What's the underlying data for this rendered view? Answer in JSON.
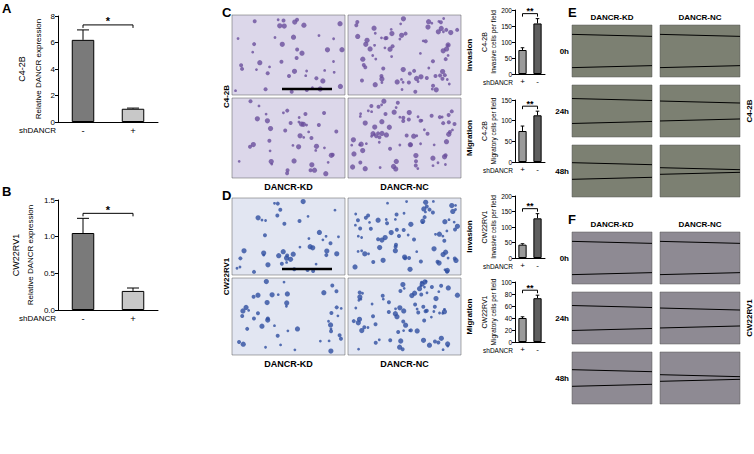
{
  "chart_data": [
    {
      "panel": "A",
      "type": "bar",
      "title": "C4-2B",
      "ylabel": "Relative DANCR expression",
      "xlabel": "shDANCR",
      "categories": [
        "-",
        "+"
      ],
      "values": [
        6.2,
        1.0
      ],
      "errors": [
        0.75,
        0.05
      ],
      "colors": [
        "#7a7a7a",
        "#c8c8c8"
      ],
      "ylim": [
        0,
        8
      ],
      "yticks": [
        0,
        2,
        4,
        6,
        8
      ],
      "significance": "*"
    },
    {
      "panel": "B",
      "type": "bar",
      "title": "CW22RV1",
      "ylabel": "Relative DANCR expression",
      "xlabel": "shDANCR",
      "categories": [
        "-",
        "+"
      ],
      "values": [
        1.05,
        0.26
      ],
      "errors": [
        0.2,
        0.04
      ],
      "colors": [
        "#7a7a7a",
        "#c8c8c8"
      ],
      "ylim": [
        0,
        1.5
      ],
      "yticks": [
        {
          "value": 0,
          "label": "0.0"
        },
        0.5,
        {
          "value": 1,
          "label": "1.0"
        },
        1.5
      ],
      "significance": "*"
    },
    {
      "type": "bar",
      "title": "C4-2B",
      "ylabel": "Invasive cells per field",
      "xlabel": "shDANCR",
      "categories": [
        "+",
        "-"
      ],
      "values": [
        75,
        158
      ],
      "errors": [
        7,
        15
      ],
      "colors": [
        "#9a9a9a",
        "#5e5e5e"
      ],
      "ylim": [
        0,
        200
      ],
      "yticks": [
        0,
        50,
        100,
        150,
        200
      ],
      "significance": "**"
    },
    {
      "type": "bar",
      "title": "C4-2B",
      "ylabel": "Migratory cells per field",
      "xlabel": "shDANCR",
      "categories": [
        "+",
        "-"
      ],
      "values": [
        75,
        113
      ],
      "errors": [
        12,
        10
      ],
      "colors": [
        "#9a9a9a",
        "#5e5e5e"
      ],
      "ylim": [
        0,
        150
      ],
      "yticks": [
        0,
        50,
        100,
        150
      ],
      "significance": "**"
    },
    {
      "type": "bar",
      "title": "CW22RV1",
      "ylabel": "Invasive cells per field",
      "xlabel": "shDANCR",
      "categories": [
        "+",
        "-"
      ],
      "values": [
        43,
        128
      ],
      "errors": [
        3,
        15
      ],
      "colors": [
        "#9a9a9a",
        "#5e5e5e"
      ],
      "ylim": [
        0,
        200
      ],
      "yticks": [
        0,
        50,
        100,
        150,
        200
      ],
      "significance": "**"
    },
    {
      "type": "bar",
      "title": "CW22RV1",
      "ylabel": "Migratory cells per field",
      "xlabel": "shDANCR",
      "categories": [
        "+",
        "-"
      ],
      "values": [
        40,
        73
      ],
      "errors": [
        2,
        5
      ],
      "colors": [
        "#9a9a9a",
        "#5e5e5e"
      ],
      "ylim": [
        0,
        100
      ],
      "yticks": [
        0,
        20,
        40,
        60,
        80,
        100
      ],
      "significance": "**"
    }
  ],
  "image_panels": [
    {
      "panel": "C",
      "cell_line": "C4-2B",
      "columns": [
        "DANCR-KD",
        "DANCR-NC"
      ],
      "rows": [
        "Invasion",
        "Migration"
      ]
    },
    {
      "panel": "D",
      "cell_line": "CW22RV1",
      "columns": [
        "DANCR-KD",
        "DANCR-NC"
      ],
      "rows": [
        "Invasion",
        "Migration"
      ]
    },
    {
      "panel": "E",
      "cell_line": "C4-2B",
      "columns": [
        "DANCR-KD",
        "DANCR-NC"
      ],
      "rows": [
        "0h",
        "24h",
        "48h"
      ]
    },
    {
      "panel": "F",
      "cell_line": "CW22RV1",
      "columns": [
        "DANCR-KD",
        "DANCR-NC"
      ],
      "rows": [
        "0h",
        "24h",
        "48h"
      ]
    }
  ]
}
